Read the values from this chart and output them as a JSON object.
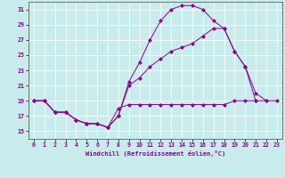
{
  "xlabel": "Windchill (Refroidissement éolien,°C)",
  "bg_color": "#c8ecec",
  "line_color": "#8b008b",
  "xlim": [
    -0.5,
    23.5
  ],
  "ylim": [
    14.0,
    32.0
  ],
  "yticks": [
    15,
    17,
    19,
    21,
    23,
    25,
    27,
    29,
    31
  ],
  "xticks": [
    0,
    1,
    2,
    3,
    4,
    5,
    6,
    7,
    8,
    9,
    10,
    11,
    12,
    13,
    14,
    15,
    16,
    17,
    18,
    19,
    20,
    21,
    22,
    23
  ],
  "line1_x": [
    0,
    1,
    2,
    3,
    4,
    5,
    6,
    7,
    8,
    9,
    10,
    11,
    12,
    13,
    14,
    15,
    16,
    17,
    18,
    19,
    20,
    21,
    22,
    23
  ],
  "line1_y": [
    19.0,
    19.0,
    17.5,
    17.5,
    16.5,
    16.0,
    16.0,
    15.5,
    18.0,
    18.5,
    18.5,
    18.5,
    18.5,
    18.5,
    18.5,
    18.5,
    18.5,
    18.5,
    18.5,
    19.0,
    19.0,
    19.0,
    19.0,
    19.0
  ],
  "line2_x": [
    0,
    1,
    2,
    3,
    4,
    5,
    6,
    7,
    8,
    9,
    10,
    11,
    12,
    13,
    14,
    15,
    16,
    17,
    18,
    19,
    20,
    21,
    22
  ],
  "line2_y": [
    19.0,
    19.0,
    17.5,
    17.5,
    16.5,
    16.0,
    16.0,
    15.5,
    17.0,
    21.5,
    24.0,
    27.0,
    29.5,
    31.0,
    31.5,
    31.5,
    31.0,
    29.5,
    28.5,
    25.5,
    23.5,
    20.0,
    19.0
  ],
  "line3_x": [
    0,
    1,
    2,
    3,
    4,
    5,
    6,
    7,
    8,
    9,
    10,
    11,
    12,
    13,
    14,
    15,
    16,
    17,
    18,
    19,
    20,
    21,
    22
  ],
  "line3_y": [
    19.0,
    19.0,
    17.5,
    17.5,
    16.5,
    16.0,
    16.0,
    15.5,
    17.0,
    21.0,
    22.0,
    23.5,
    24.5,
    25.5,
    26.0,
    26.5,
    27.5,
    28.5,
    28.5,
    25.5,
    23.5,
    19.0,
    null
  ],
  "grid_color": "#ffffff",
  "markersize": 2.5
}
